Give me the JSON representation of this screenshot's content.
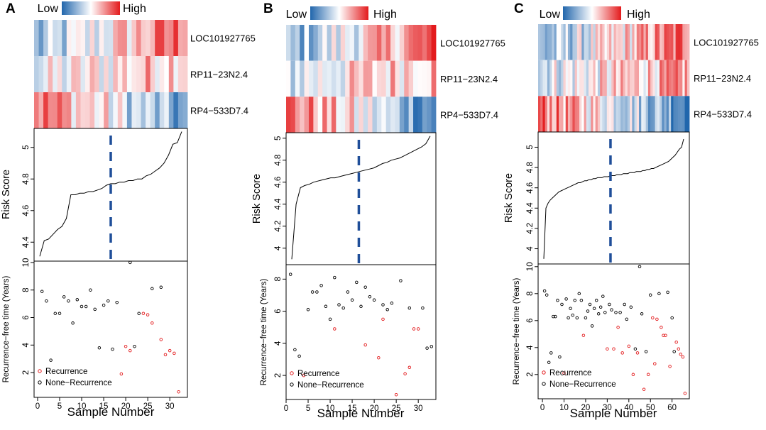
{
  "figure": {
    "legend_low": "Low",
    "legend_high": "High",
    "colors": {
      "low": "#2166ac",
      "mid": "#ffffff",
      "high": "#e31a1c",
      "recurrence": "#e31a1c",
      "non_recurrence": "#000000",
      "cutoff": "#1f4e99"
    }
  },
  "chart_data": [
    {
      "panel": "A",
      "type": "composite",
      "genes": [
        "LOC101927765",
        "RP11−23N2.4",
        "RP4−533D7.4"
      ],
      "heatmap_n": 33,
      "risk": {
        "type": "line",
        "ylabel": "Risk Score",
        "ylim": [
          4.28,
          5.12
        ],
        "yticks": [
          4.4,
          4.6,
          4.8,
          5.0
        ],
        "cutoff_sample": 17,
        "values": [
          4.31,
          4.41,
          4.42,
          4.45,
          4.48,
          4.5,
          4.55,
          4.7,
          4.7,
          4.71,
          4.71,
          4.72,
          4.72,
          4.73,
          4.74,
          4.76,
          4.77,
          4.77,
          4.78,
          4.78,
          4.79,
          4.79,
          4.8,
          4.8,
          4.82,
          4.83,
          4.85,
          4.87,
          4.9,
          4.95,
          5.02,
          5.03,
          5.1
        ]
      },
      "rfs": {
        "type": "scatter",
        "xlabel": "Sample Number",
        "ylabel": "Recurrence−free time (Years)",
        "xlim": [
          -0.8,
          34
        ],
        "ylim": [
          0.2,
          10.1
        ],
        "xticks": [
          0,
          5,
          10,
          15,
          20,
          25,
          30
        ],
        "yticks": [
          2,
          4,
          6,
          8,
          10
        ],
        "legend": [
          "Recurrence",
          "None−Recurrence"
        ],
        "recurrence": [
          [
            19,
            1.9
          ],
          [
            20,
            3.9
          ],
          [
            21,
            3.6
          ],
          [
            24,
            6.3
          ],
          [
            25,
            6.2
          ],
          [
            26,
            5.6
          ],
          [
            28,
            4.4
          ],
          [
            29,
            3.3
          ],
          [
            30,
            3.6
          ],
          [
            31,
            3.4
          ],
          [
            32,
            0.6
          ]
        ],
        "non_recurrence": [
          [
            1,
            7.9
          ],
          [
            2,
            7.2
          ],
          [
            3,
            2.9
          ],
          [
            4,
            6.3
          ],
          [
            5,
            6.3
          ],
          [
            6,
            7.5
          ],
          [
            7,
            7.2
          ],
          [
            8,
            5.6
          ],
          [
            9,
            7.3
          ],
          [
            10,
            6.8
          ],
          [
            11,
            6.8
          ],
          [
            12,
            8.0
          ],
          [
            13,
            6.6
          ],
          [
            14,
            3.8
          ],
          [
            15,
            6.9
          ],
          [
            16,
            7.2
          ],
          [
            17,
            3.7
          ],
          [
            18,
            7.1
          ],
          [
            21,
            10.0
          ],
          [
            22,
            3.9
          ],
          [
            23,
            6.3
          ],
          [
            26,
            8.1
          ],
          [
            28,
            8.2
          ]
        ]
      }
    },
    {
      "panel": "B",
      "type": "composite",
      "genes": [
        "LOC101927765",
        "RP11−23N2.4",
        "RP4−533D7.4"
      ],
      "heatmap_n": 33,
      "risk": {
        "type": "line",
        "ylabel": "Risk Score",
        "ylim": [
          3.85,
          5.05
        ],
        "yticks": [
          4.0,
          4.2,
          4.4,
          4.6,
          4.8,
          5.0
        ],
        "cutoff_sample": 16.5,
        "values": [
          3.9,
          4.4,
          4.55,
          4.57,
          4.58,
          4.6,
          4.61,
          4.62,
          4.63,
          4.64,
          4.64,
          4.65,
          4.66,
          4.67,
          4.68,
          4.69,
          4.7,
          4.71,
          4.72,
          4.73,
          4.75,
          4.77,
          4.78,
          4.8,
          4.81,
          4.82,
          4.84,
          4.86,
          4.88,
          4.9,
          4.92,
          4.95,
          5.02
        ]
      },
      "rfs": {
        "type": "scatter",
        "xlabel": "Sample Number",
        "ylabel": "Recurrence−free time (Years)",
        "xlim": [
          0,
          34
        ],
        "ylim": [
          0.5,
          8.9
        ],
        "xticks": [
          0,
          5,
          10,
          15,
          20,
          25,
          30
        ],
        "yticks": [
          2,
          4,
          6,
          8
        ],
        "legend": [
          "Recurrence",
          "None−Recurrence"
        ],
        "recurrence": [
          [
            4,
            2.0
          ],
          [
            11,
            4.9
          ],
          [
            18,
            3.9
          ],
          [
            21,
            3.1
          ],
          [
            22,
            5.5
          ],
          [
            25,
            0.8
          ],
          [
            27,
            2.1
          ],
          [
            28,
            2.5
          ],
          [
            29,
            4.9
          ],
          [
            30,
            4.9
          ]
        ],
        "non_recurrence": [
          [
            1,
            8.3
          ],
          [
            2,
            3.6
          ],
          [
            3,
            3.2
          ],
          [
            5,
            6.1
          ],
          [
            6,
            7.2
          ],
          [
            7,
            7.2
          ],
          [
            8,
            7.6
          ],
          [
            9,
            6.3
          ],
          [
            10,
            5.5
          ],
          [
            11,
            8.1
          ],
          [
            12,
            6.4
          ],
          [
            13,
            6.2
          ],
          [
            14,
            7.2
          ],
          [
            15,
            6.7
          ],
          [
            16,
            7.8
          ],
          [
            17,
            6.3
          ],
          [
            18,
            7.5
          ],
          [
            19,
            6.9
          ],
          [
            20,
            6.7
          ],
          [
            22,
            6.4
          ],
          [
            23,
            6.1
          ],
          [
            24,
            6.5
          ],
          [
            26,
            7.9
          ],
          [
            28,
            6.2
          ],
          [
            31,
            6.2
          ],
          [
            32,
            3.7
          ],
          [
            33,
            3.8
          ]
        ]
      }
    },
    {
      "panel": "C",
      "type": "composite",
      "genes": [
        "LOC101927765",
        "RP11−23N2.4",
        "RP4−533D7.4"
      ],
      "heatmap_n": 66,
      "risk": {
        "type": "line",
        "ylabel": "Risk Score",
        "ylim": [
          3.85,
          5.15
        ],
        "yticks": [
          4.0,
          4.2,
          4.4,
          4.6,
          4.8,
          5.0
        ],
        "cutoff_sample": 32,
        "values": [
          3.9,
          4.4,
          4.45,
          4.48,
          4.5,
          4.52,
          4.54,
          4.56,
          4.57,
          4.58,
          4.59,
          4.6,
          4.61,
          4.62,
          4.63,
          4.64,
          4.65,
          4.65,
          4.66,
          4.67,
          4.67,
          4.68,
          4.68,
          4.69,
          4.69,
          4.7,
          4.7,
          4.7,
          4.71,
          4.71,
          4.71,
          4.72,
          4.72,
          4.72,
          4.73,
          4.73,
          4.73,
          4.74,
          4.74,
          4.74,
          4.75,
          4.75,
          4.75,
          4.76,
          4.76,
          4.76,
          4.77,
          4.77,
          4.78,
          4.78,
          4.79,
          4.79,
          4.8,
          4.81,
          4.82,
          4.83,
          4.84,
          4.85,
          4.86,
          4.88,
          4.9,
          4.92,
          4.95,
          4.98,
          5.0,
          5.08
        ]
      },
      "rfs": {
        "type": "scatter",
        "xlabel": "Sample Number",
        "ylabel": "Recurrence−free time (Years)",
        "xlim": [
          -2,
          68
        ],
        "ylim": [
          0.2,
          10.2
        ],
        "xticks": [
          0,
          10,
          20,
          30,
          40,
          50,
          60
        ],
        "yticks": [
          2,
          4,
          6,
          8,
          10
        ],
        "legend": [
          "Recurrence",
          "None−Recurrence"
        ],
        "recurrence": [
          [
            10,
            2.1
          ],
          [
            19,
            4.9
          ],
          [
            30,
            3.9
          ],
          [
            33,
            3.9
          ],
          [
            35,
            5.5
          ],
          [
            37,
            3.6
          ],
          [
            40,
            4.1
          ],
          [
            42,
            2.0
          ],
          [
            44,
            3.6
          ],
          [
            47,
            0.9
          ],
          [
            49,
            2.0
          ],
          [
            51,
            6.2
          ],
          [
            52,
            2.8
          ],
          [
            53,
            6.1
          ],
          [
            55,
            5.5
          ],
          [
            56,
            4.9
          ],
          [
            57,
            4.9
          ],
          [
            59,
            2.6
          ],
          [
            62,
            4.4
          ],
          [
            63,
            3.9
          ],
          [
            64,
            3.5
          ],
          [
            65,
            3.3
          ],
          [
            66,
            0.6
          ]
        ],
        "non_recurrence": [
          [
            1,
            8.2
          ],
          [
            2,
            7.9
          ],
          [
            3,
            2.9
          ],
          [
            4,
            3.6
          ],
          [
            5,
            6.3
          ],
          [
            6,
            6.3
          ],
          [
            7,
            7.5
          ],
          [
            8,
            3.3
          ],
          [
            9,
            7.2
          ],
          [
            11,
            7.6
          ],
          [
            12,
            6.2
          ],
          [
            13,
            6.9
          ],
          [
            14,
            6.4
          ],
          [
            15,
            7.5
          ],
          [
            16,
            6.2
          ],
          [
            17,
            8.0
          ],
          [
            18,
            7.5
          ],
          [
            20,
            6.2
          ],
          [
            21,
            6.7
          ],
          [
            22,
            7.2
          ],
          [
            23,
            5.6
          ],
          [
            24,
            6.9
          ],
          [
            25,
            7.5
          ],
          [
            26,
            6.5
          ],
          [
            27,
            7.0
          ],
          [
            28,
            7.8
          ],
          [
            29,
            6.6
          ],
          [
            31,
            7.2
          ],
          [
            32,
            6.8
          ],
          [
            34,
            6.6
          ],
          [
            36,
            6.6
          ],
          [
            38,
            7.2
          ],
          [
            39,
            6.1
          ],
          [
            41,
            7.0
          ],
          [
            43,
            3.9
          ],
          [
            45,
            10.0
          ],
          [
            46,
            6.5
          ],
          [
            48,
            3.7
          ],
          [
            50,
            7.9
          ],
          [
            54,
            8.0
          ],
          [
            58,
            8.1
          ],
          [
            60,
            6.2
          ],
          [
            61,
            3.7
          ]
        ]
      }
    }
  ]
}
